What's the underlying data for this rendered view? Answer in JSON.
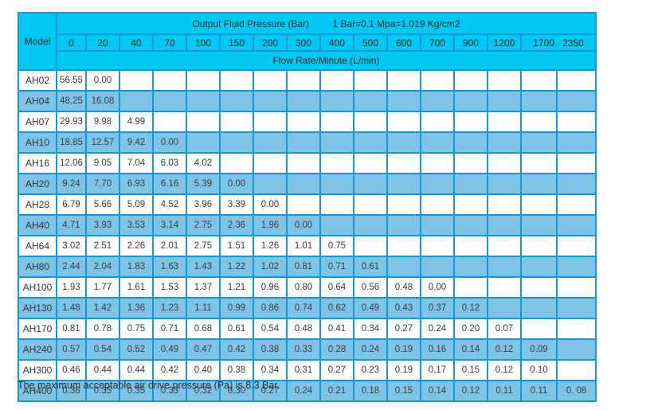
{
  "table": {
    "title": "Output Fluid Pressure (Bar)",
    "conversion": "1 Bar=0.1 Mpa=1.019 Kg/cm2",
    "model_header": "Model",
    "flow_header": "Flow Rate/Minute (L/min)",
    "pressure_columns": [
      "0",
      "20",
      "40",
      "70",
      "100",
      "150",
      "200",
      "300",
      "400",
      "500",
      "600",
      "700",
      "900",
      "1200",
      "1700",
      "2350"
    ],
    "rows": [
      {
        "model": "AH02",
        "values": [
          "56.55",
          "0.00"
        ]
      },
      {
        "model": "AH04",
        "values": [
          "48.25",
          "16.08"
        ]
      },
      {
        "model": "AH07",
        "values": [
          "29.93",
          "9.98",
          "4.99"
        ]
      },
      {
        "model": "AH10",
        "values": [
          "18.85",
          "12.57",
          "9.42",
          "0.00"
        ]
      },
      {
        "model": "AH16",
        "values": [
          "12.06",
          "9.05",
          "7.04",
          "6.03",
          "4.02"
        ]
      },
      {
        "model": "AH20",
        "values": [
          "9.24",
          "7.70",
          "6.93",
          "6.16",
          "5.39",
          "0.00"
        ]
      },
      {
        "model": "AH28",
        "values": [
          "6.79",
          "5.66",
          "5.09",
          "4.52",
          "3.96",
          "3.39",
          "0.00"
        ]
      },
      {
        "model": "AH40",
        "values": [
          "4.71",
          "3.93",
          "3.53",
          "3.14",
          "2.75",
          "2.36",
          "1.96",
          "0.00"
        ]
      },
      {
        "model": "AH64",
        "values": [
          "3.02",
          "2.51",
          "2.26",
          "2.01",
          "2.75",
          "1.51",
          "1.26",
          "1.01",
          "0.75"
        ]
      },
      {
        "model": "AH80",
        "values": [
          "2.44",
          "2.04",
          "1.83",
          "1.63",
          "1.43",
          "1.22",
          "1.02",
          "0.81",
          "0.71",
          "0.61"
        ]
      },
      {
        "model": "AH100",
        "values": [
          "1.93",
          "1.77",
          "1.61",
          "1.53",
          "1.37",
          "1.21",
          "0.96",
          "0.80",
          "0.64",
          "0.56",
          "0.48",
          "0.00"
        ]
      },
      {
        "model": "AH130",
        "values": [
          "1.48",
          "1.42",
          "1.36",
          "1.23",
          "1.11",
          "0.99",
          "0.86",
          "0.74",
          "0.62",
          "0.49",
          "0.43",
          "0.37",
          "0.12"
        ]
      },
      {
        "model": "AH170",
        "values": [
          "0.81",
          "0.78",
          "0.75",
          "0.71",
          "0.68",
          "0.61",
          "0.54",
          "0.48",
          "0.41",
          "0.34",
          "0.27",
          "0.24",
          "0.20",
          "0.07"
        ]
      },
      {
        "model": "AH240",
        "values": [
          "0.57",
          "0.54",
          "0.52",
          "0.49",
          "0.47",
          "0.42",
          "0.38",
          "0.33",
          "0.28",
          "0.24",
          "0.19",
          "0.16",
          "0.14",
          "0.12",
          "0.09"
        ]
      },
      {
        "model": "AH300",
        "values": [
          "0.46",
          "0.44",
          "0.44",
          "0.42",
          "0.40",
          "0.38",
          "0.34",
          "0.31",
          "0.27",
          "0.23",
          "0.19",
          "0.17",
          "0.15",
          "0.12",
          "0.10"
        ]
      },
      {
        "model": "AH400",
        "values": [
          "0.36",
          "0.35",
          "0.35",
          "0.33",
          "0.32",
          "0.30",
          "0.27",
          "0.24",
          "0.21",
          "0.18",
          "0.15",
          "0.14",
          "0.12",
          "0.11",
          "0.11",
          "0. 08"
        ]
      }
    ]
  },
  "footnote": "The maximum acceptable air drive pressure (Pa) is 8.3 Bar.",
  "colors": {
    "header_cyan": "#00c8f2",
    "row_blue": "#7ec4e8",
    "border": "#1a96d4"
  }
}
